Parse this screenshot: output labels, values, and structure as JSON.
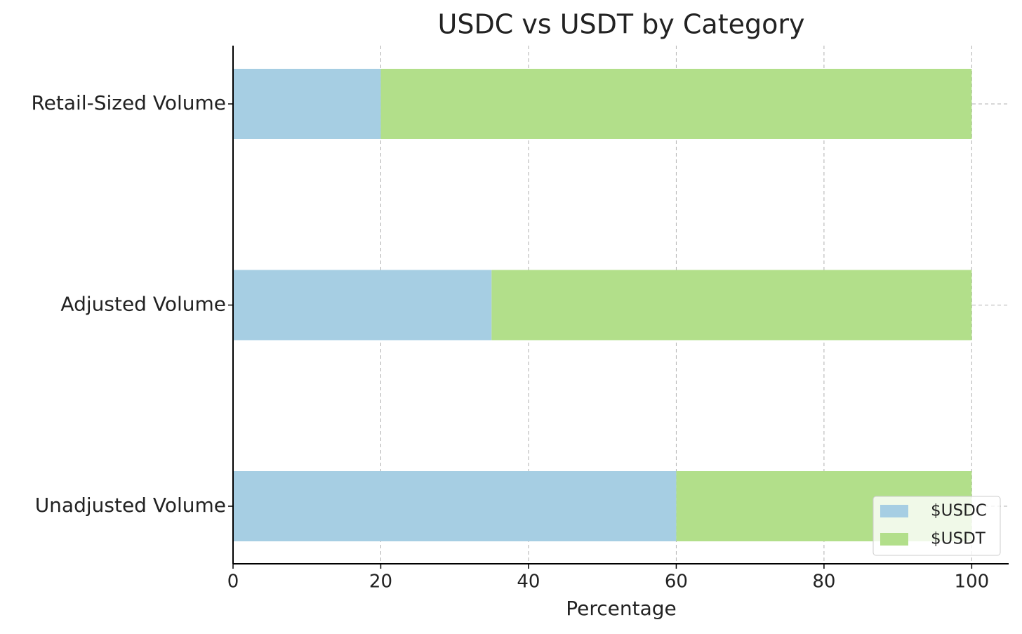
{
  "chart_data": {
    "type": "stacked-barh",
    "title": "USDC vs USDT by Category",
    "xlabel": "Percentage",
    "categories": [
      "Unadjusted Volume",
      "Adjusted Volume",
      "Retail-Sized Volume"
    ],
    "series": [
      {
        "name": "$USDC",
        "color": "#a6cee3",
        "values": [
          60,
          35,
          20
        ]
      },
      {
        "name": "$USDT",
        "color": "#b2df8a",
        "values": [
          40,
          65,
          80
        ]
      }
    ],
    "xlim": [
      0,
      105
    ],
    "xticks": [
      0,
      20,
      40,
      60,
      80,
      100
    ],
    "grid": true,
    "legend": "lower right"
  }
}
